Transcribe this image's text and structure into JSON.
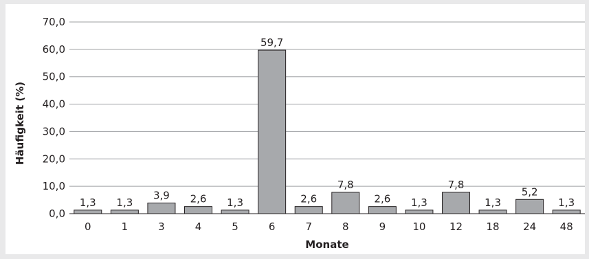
{
  "chart_data": {
    "type": "bar",
    "title": "",
    "xlabel": "Monate",
    "ylabel": "Häufigkeit (%)",
    "categories": [
      "0",
      "1",
      "3",
      "4",
      "5",
      "6",
      "7",
      "8",
      "9",
      "10",
      "12",
      "18",
      "24",
      "48"
    ],
    "values": [
      1.3,
      1.3,
      3.9,
      2.6,
      1.3,
      59.7,
      2.6,
      7.8,
      2.6,
      1.3,
      7.8,
      1.3,
      5.2,
      1.3
    ],
    "data_labels": [
      "1,3",
      "1,3",
      "3,9",
      "2,6",
      "1,3",
      "59,7",
      "2,6",
      "7,8",
      "2,6",
      "1,3",
      "7,8",
      "1,3",
      "5,2",
      "1,3"
    ],
    "yticks": [
      0,
      10,
      20,
      30,
      40,
      50,
      60,
      70
    ],
    "ytick_labels": [
      "0,0",
      "10,0",
      "20,0",
      "30,0",
      "40,0",
      "50,0",
      "60,0",
      "70,0"
    ],
    "ylim": [
      0,
      70
    ],
    "grid": true,
    "legend": "none",
    "colors": {
      "bar_fill": "#a7a9ac",
      "bar_stroke": "#231f20",
      "grid": "#9d9fa2",
      "axis": "#231f20",
      "text": "#231f20",
      "background": "#e9e9ea",
      "plot_background": "#ffffff"
    }
  }
}
